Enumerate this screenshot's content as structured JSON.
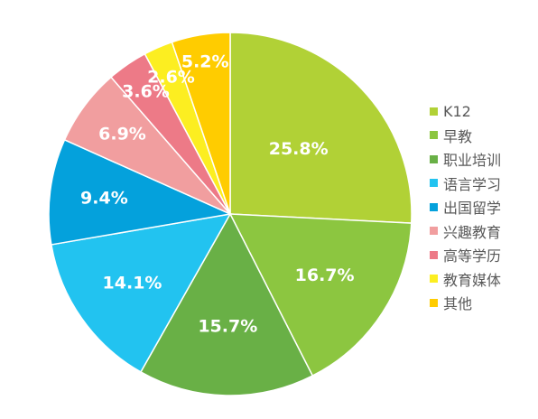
{
  "chart_data": {
    "type": "pie",
    "title": "",
    "legend_position": "right",
    "slices": [
      {
        "name": "K12",
        "value": 25.8,
        "label": "25.8%",
        "color": "#b1d136"
      },
      {
        "name": "早教",
        "value": 16.7,
        "label": "16.7%",
        "color": "#8cc640"
      },
      {
        "name": "职业培训",
        "value": 15.7,
        "label": "15.7%",
        "color": "#69b046"
      },
      {
        "name": "语言学习",
        "value": 14.1,
        "label": "14.1%",
        "color": "#22c3f0"
      },
      {
        "name": "出国留学",
        "value": 9.4,
        "label": "9.4%",
        "color": "#04a1dc"
      },
      {
        "name": "兴趣教育",
        "value": 6.9,
        "label": "6.9%",
        "color": "#f19e9f"
      },
      {
        "name": "高等学历",
        "value": 3.6,
        "label": "3.6%",
        "color": "#ed7a87"
      },
      {
        "name": "教育媒体",
        "value": 2.6,
        "label": "2.6%",
        "color": "#fcee21"
      },
      {
        "name": "其他",
        "value": 5.2,
        "label": "5.2%",
        "color": "#ffcc00"
      }
    ]
  }
}
